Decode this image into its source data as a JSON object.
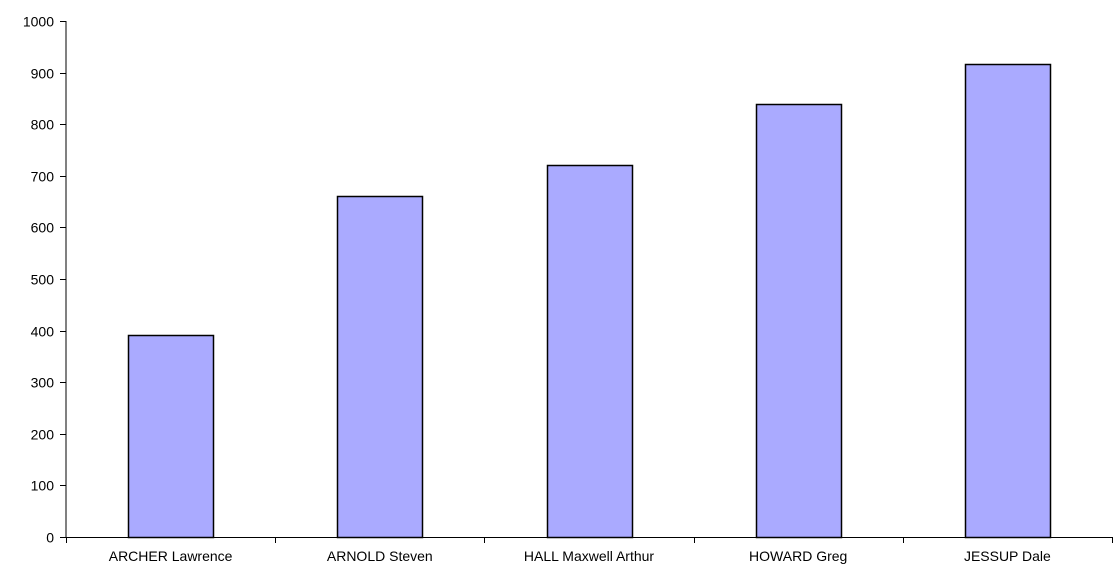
{
  "chart_data": {
    "type": "bar",
    "title": "",
    "xlabel": "",
    "ylabel": "",
    "categories": [
      "ARCHER Lawrence",
      "ARNOLD Steven",
      "HALL Maxwell Arthur",
      "HOWARD Greg",
      "JESSUP Dale"
    ],
    "values": [
      392,
      660,
      721,
      839,
      916
    ],
    "ylim": [
      0,
      1000
    ],
    "yticks": [
      0,
      100,
      200,
      300,
      400,
      500,
      600,
      700,
      800,
      900,
      1000
    ],
    "grid": false,
    "legend": "none",
    "bar_color": "#aaaaff",
    "bar_edge_color": "#000000"
  }
}
